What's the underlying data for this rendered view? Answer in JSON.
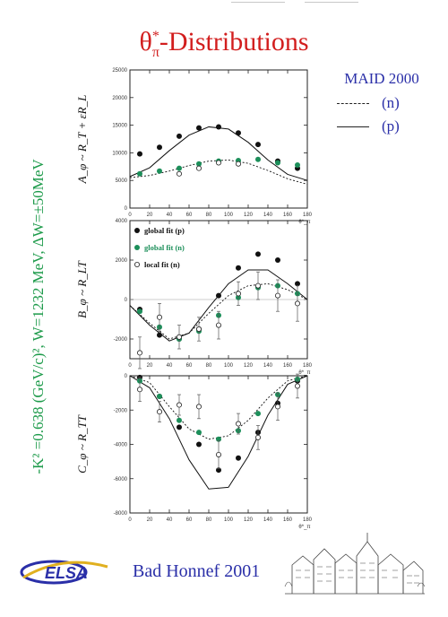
{
  "title": {
    "main": "θ",
    "sub": "π",
    "sup": "*",
    "rest": "-Distributions"
  },
  "legend": {
    "title": "MAID 2000",
    "dashed_label": "(n)",
    "solid_label": "(p)"
  },
  "side_label": "-K² =0.638 (GeV/c)², W=1232 MeV, ΔW=±50MeV",
  "footer": {
    "text": "Bad Honnef 2001",
    "logo_text": "ELSA",
    "sketch_caption": "Bad Honnef"
  },
  "colors": {
    "title": "#d21e1e",
    "legend": "#2a2fa8",
    "side": "#1e9b4b",
    "green_points": "#1c8f5a",
    "black_points": "#111111"
  },
  "chart_data": [
    {
      "type": "scatter",
      "ylabel": "A_φ ~ R_T + εR_L",
      "xlabel": "θ*_π",
      "xlim": [
        0,
        180
      ],
      "ylim": [
        0,
        25000
      ],
      "x_ticks": [
        "0",
        "20",
        "40",
        "60",
        "80",
        "100",
        "120",
        "140",
        "160",
        "180"
      ],
      "y_ticks": [
        "0",
        "5000",
        "10000",
        "15000",
        "20000",
        "25000"
      ],
      "series": [
        {
          "style": "black",
          "x": [
            10,
            30,
            50,
            70,
            90,
            110,
            130,
            150,
            170
          ],
          "y": [
            9800,
            11000,
            13000,
            14500,
            14700,
            13600,
            11500,
            8500,
            7200
          ]
        },
        {
          "style": "green",
          "x": [
            10,
            30,
            50,
            70,
            90,
            110,
            130,
            150,
            170
          ],
          "y": [
            6200,
            6700,
            7200,
            8000,
            8500,
            8600,
            8800,
            8200,
            7800
          ]
        },
        {
          "style": "open",
          "x": [
            50,
            70,
            90,
            110
          ],
          "y": [
            6200,
            7200,
            8200,
            8000
          ]
        }
      ],
      "curves": [
        {
          "style": "solid",
          "x": [
            0,
            20,
            40,
            60,
            80,
            100,
            120,
            140,
            160,
            180
          ],
          "y": [
            5700,
            7300,
            10400,
            13200,
            14700,
            14300,
            11900,
            8700,
            6100,
            5000
          ]
        },
        {
          "style": "dashed",
          "x": [
            0,
            20,
            40,
            60,
            80,
            100,
            120,
            140,
            160,
            180
          ],
          "y": [
            5500,
            5900,
            6700,
            7700,
            8500,
            8700,
            8100,
            6800,
            5300,
            4300
          ]
        }
      ]
    },
    {
      "type": "scatter",
      "ylabel": "B_φ ~ R_LT",
      "xlabel": "θ*_π",
      "xlim": [
        0,
        180
      ],
      "ylim": [
        -3000,
        4000
      ],
      "x_ticks": [
        "0",
        "20",
        "40",
        "60",
        "80",
        "100",
        "120",
        "140",
        "160",
        "180"
      ],
      "y_ticks": [
        "-2000",
        "0",
        "2000",
        "4000"
      ],
      "legend": [
        "global fit (p)",
        "global fit (n)",
        "local fit (n)"
      ],
      "series": [
        {
          "style": "black",
          "x": [
            10,
            30,
            50,
            70,
            90,
            110,
            130,
            150,
            170
          ],
          "y": [
            -500,
            -1800,
            -2000,
            -1500,
            200,
            1600,
            2300,
            2000,
            800
          ]
        },
        {
          "style": "green",
          "x": [
            10,
            30,
            50,
            70,
            90,
            110,
            130,
            150,
            170
          ],
          "y": [
            -600,
            -1400,
            -2000,
            -1600,
            -800,
            100,
            600,
            700,
            300
          ]
        },
        {
          "style": "open",
          "x": [
            10,
            30,
            50,
            70,
            90,
            110,
            130,
            150,
            170
          ],
          "y": [
            -2700,
            -900,
            -1900,
            -1500,
            -1300,
            300,
            700,
            200,
            -200
          ],
          "err": [
            800,
            700,
            600,
            600,
            700,
            600,
            700,
            800,
            900
          ]
        }
      ],
      "curves": [
        {
          "style": "solid",
          "x": [
            0,
            20,
            40,
            60,
            80,
            100,
            120,
            140,
            160,
            180
          ],
          "y": [
            -300,
            -1300,
            -2100,
            -1700,
            -400,
            800,
            1500,
            1500,
            800,
            0
          ]
        },
        {
          "style": "dashed",
          "x": [
            0,
            20,
            40,
            60,
            80,
            100,
            120,
            140,
            160,
            180
          ],
          "y": [
            -300,
            -1200,
            -2000,
            -1700,
            -700,
            200,
            700,
            800,
            500,
            0
          ]
        }
      ]
    },
    {
      "type": "scatter",
      "ylabel": "C_φ ~ R_TT",
      "xlabel": "θ*_π",
      "xlim": [
        0,
        180
      ],
      "ylim": [
        -8000,
        0
      ],
      "x_ticks": [
        "0",
        "20",
        "40",
        "60",
        "80",
        "100",
        "120",
        "140",
        "160",
        "180"
      ],
      "y_ticks": [
        "-8000",
        "-6000",
        "-4000",
        "-2000",
        "0"
      ],
      "series": [
        {
          "style": "black",
          "x": [
            10,
            30,
            50,
            70,
            90,
            110,
            130,
            150,
            170
          ],
          "y": [
            -100,
            -1200,
            -3000,
            -4000,
            -5500,
            -4800,
            -3300,
            -1600,
            -300
          ]
        },
        {
          "style": "green",
          "x": [
            10,
            30,
            50,
            70,
            90,
            110,
            130,
            150,
            170
          ],
          "y": [
            -300,
            -1200,
            -2600,
            -3300,
            -3700,
            -3200,
            -2200,
            -1100,
            -200
          ]
        },
        {
          "style": "open",
          "x": [
            10,
            30,
            50,
            70,
            90,
            110,
            130,
            150,
            170
          ],
          "y": [
            -800,
            -2100,
            -1700,
            -1800,
            -4600,
            -2800,
            -3600,
            -1800,
            -600
          ],
          "err": [
            700,
            600,
            600,
            700,
            800,
            600,
            700,
            800,
            700
          ]
        }
      ],
      "curves": [
        {
          "style": "solid",
          "x": [
            0,
            20,
            40,
            60,
            80,
            100,
            120,
            140,
            160,
            180
          ],
          "y": [
            0,
            -700,
            -2500,
            -4900,
            -6600,
            -6500,
            -4700,
            -2300,
            -500,
            0
          ]
        },
        {
          "style": "dashed",
          "x": [
            0,
            20,
            40,
            60,
            80,
            100,
            120,
            140,
            160,
            180
          ],
          "y": [
            0,
            -400,
            -1800,
            -3100,
            -3700,
            -3500,
            -2600,
            -1300,
            -300,
            0
          ]
        }
      ]
    }
  ]
}
